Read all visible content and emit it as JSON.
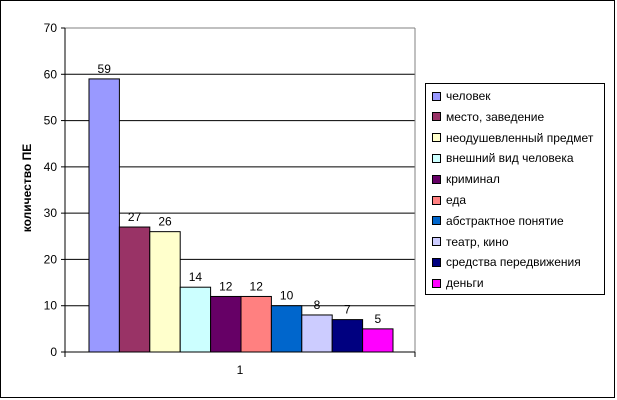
{
  "chart_data": {
    "type": "bar",
    "title": "",
    "xlabel": "",
    "ylabel": "количество ПЕ",
    "ylim": [
      0,
      70
    ],
    "ytick_step": 10,
    "grid": true,
    "legend_position": "right",
    "categories": [
      "1"
    ],
    "series": [
      {
        "name": "человек",
        "values": [
          59
        ],
        "color": "#9999FF"
      },
      {
        "name": "место, заведение",
        "values": [
          27
        ],
        "color": "#993366"
      },
      {
        "name": "неодушевленный предмет",
        "values": [
          26
        ],
        "color": "#FFFFCC"
      },
      {
        "name": "внешний вид человека",
        "values": [
          14
        ],
        "color": "#CCFFFF"
      },
      {
        "name": "криминал",
        "values": [
          12
        ],
        "color": "#660066"
      },
      {
        "name": "еда",
        "values": [
          12
        ],
        "color": "#FF8080"
      },
      {
        "name": "абстрактное понятие",
        "values": [
          10
        ],
        "color": "#0066CC"
      },
      {
        "name": "театр, кино",
        "values": [
          8
        ],
        "color": "#CCCCFF"
      },
      {
        "name": "средства передвижения",
        "values": [
          7
        ],
        "color": "#000080"
      },
      {
        "name": "деньги",
        "values": [
          5
        ],
        "color": "#FF00FF"
      }
    ]
  }
}
